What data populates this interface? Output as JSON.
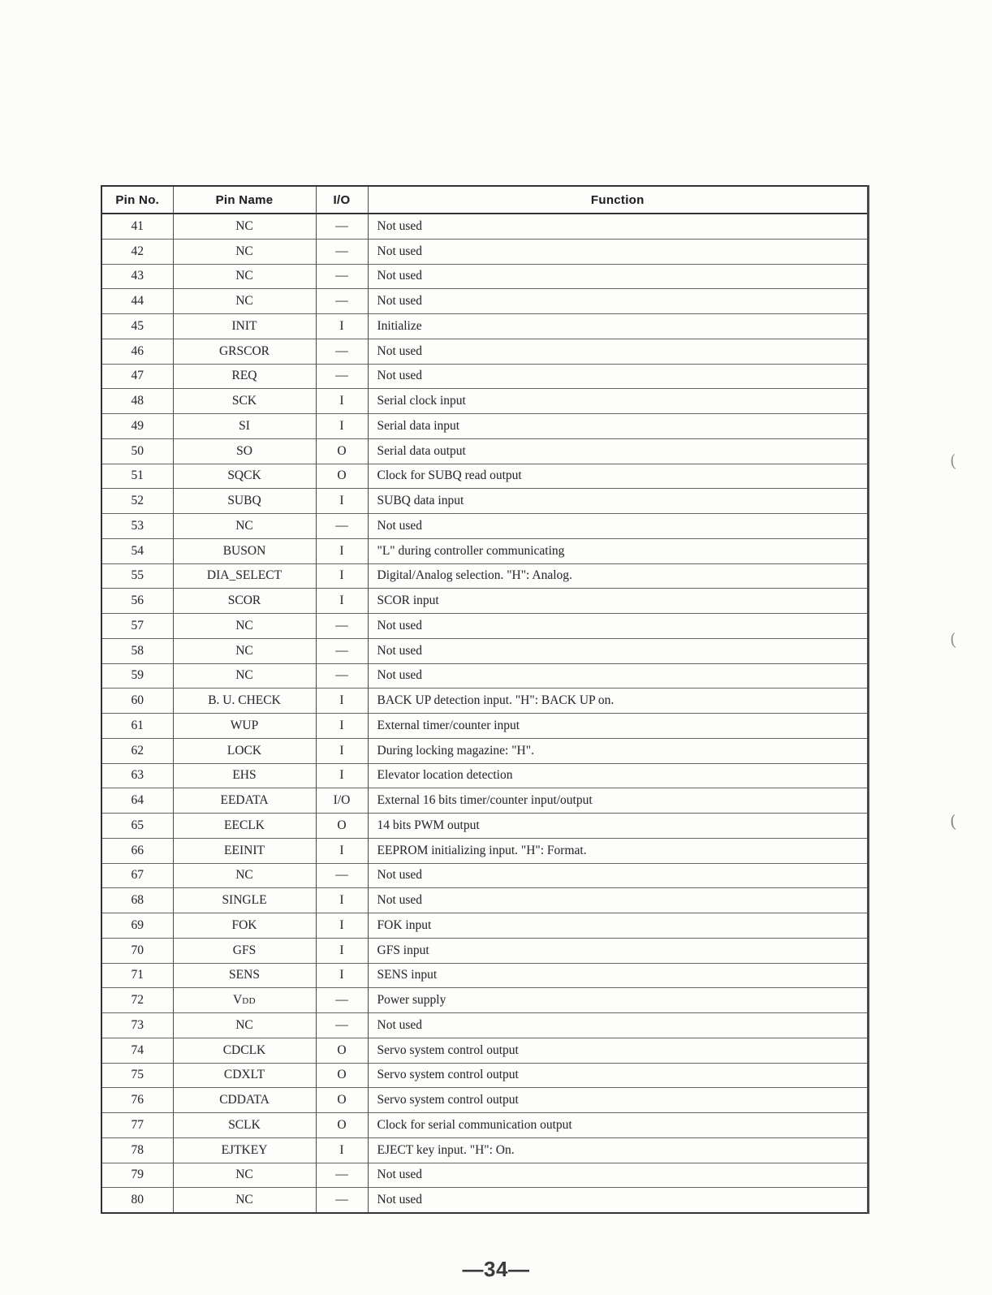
{
  "table": {
    "headers": [
      "Pin No.",
      "Pin Name",
      "I/O",
      "Function"
    ],
    "rows": [
      {
        "pin": "41",
        "name": "NC",
        "io": "—",
        "function": "Not used"
      },
      {
        "pin": "42",
        "name": "NC",
        "io": "—",
        "function": "Not used"
      },
      {
        "pin": "43",
        "name": "NC",
        "io": "—",
        "function": "Not used"
      },
      {
        "pin": "44",
        "name": "NC",
        "io": "—",
        "function": "Not used"
      },
      {
        "pin": "45",
        "name": "INIT",
        "io": "I",
        "function": "Initialize"
      },
      {
        "pin": "46",
        "name": "GRSCOR",
        "io": "—",
        "function": "Not used"
      },
      {
        "pin": "47",
        "name": "REQ",
        "io": "—",
        "function": "Not used"
      },
      {
        "pin": "48",
        "name": "SCK",
        "io": "I",
        "function": "Serial clock input"
      },
      {
        "pin": "49",
        "name": "SI",
        "io": "I",
        "function": "Serial data input"
      },
      {
        "pin": "50",
        "name": "SO",
        "io": "O",
        "function": "Serial data output"
      },
      {
        "pin": "51",
        "name": "SQCK",
        "io": "O",
        "function": "Clock for SUBQ read output"
      },
      {
        "pin": "52",
        "name": "SUBQ",
        "io": "I",
        "function": "SUBQ data input"
      },
      {
        "pin": "53",
        "name": "NC",
        "io": "—",
        "function": "Not used"
      },
      {
        "pin": "54",
        "name": "BUSON",
        "io": "I",
        "function": "\"L\" during controller communicating"
      },
      {
        "pin": "55",
        "name": "DIA_SELECT",
        "io": "I",
        "function": "Digital/Analog selection. \"H\": Analog."
      },
      {
        "pin": "56",
        "name": "SCOR",
        "io": "I",
        "function": "SCOR input"
      },
      {
        "pin": "57",
        "name": "NC",
        "io": "—",
        "function": "Not used"
      },
      {
        "pin": "58",
        "name": "NC",
        "io": "—",
        "function": "Not used"
      },
      {
        "pin": "59",
        "name": "NC",
        "io": "—",
        "function": "Not used"
      },
      {
        "pin": "60",
        "name": "B. U. CHECK",
        "io": "I",
        "function": "BACK UP detection input. \"H\": BACK UP on."
      },
      {
        "pin": "61",
        "name": "WUP",
        "io": "I",
        "function": "External timer/counter input"
      },
      {
        "pin": "62",
        "name": "LOCK",
        "io": "I",
        "function": "During locking magazine: \"H\"."
      },
      {
        "pin": "63",
        "name": "EHS",
        "io": "I",
        "function": "Elevator location detection"
      },
      {
        "pin": "64",
        "name": "EEDATA",
        "io": "I/O",
        "function": "External 16 bits timer/counter input/output"
      },
      {
        "pin": "65",
        "name": "EECLK",
        "io": "O",
        "function": "14 bits PWM output"
      },
      {
        "pin": "66",
        "name": "EEINIT",
        "io": "I",
        "function": "EEPROM initializing input. \"H\": Format."
      },
      {
        "pin": "67",
        "name": "NC",
        "io": "—",
        "function": "Not used"
      },
      {
        "pin": "68",
        "name": "SINGLE",
        "io": "I",
        "function": "Not used"
      },
      {
        "pin": "69",
        "name": "FOK",
        "io": "I",
        "function": "FOK input"
      },
      {
        "pin": "70",
        "name": "GFS",
        "io": "I",
        "function": "GFS input"
      },
      {
        "pin": "71",
        "name": "SENS",
        "io": "I",
        "function": "SENS input"
      },
      {
        "pin": "72",
        "name": "VDD",
        "name_sub": true,
        "io": "—",
        "function": "Power supply"
      },
      {
        "pin": "73",
        "name": "NC",
        "io": "—",
        "function": "Not used"
      },
      {
        "pin": "74",
        "name": "CDCLK",
        "io": "O",
        "function": "Servo system control output"
      },
      {
        "pin": "75",
        "name": "CDXLT",
        "io": "O",
        "function": "Servo system control output"
      },
      {
        "pin": "76",
        "name": "CDDATA",
        "io": "O",
        "function": "Servo system control output"
      },
      {
        "pin": "77",
        "name": "SCLK",
        "io": "O",
        "function": "Clock for serial communication output"
      },
      {
        "pin": "78",
        "name": "EJTKEY",
        "io": "I",
        "function": "EJECT key input. \"H\": On."
      },
      {
        "pin": "79",
        "name": "NC",
        "io": "—",
        "function": "Not used"
      },
      {
        "pin": "80",
        "name": "NC",
        "io": "—",
        "function": "Not used"
      }
    ]
  },
  "margin_marks": {
    "mark1": "(",
    "mark2": "(",
    "mark3": "("
  },
  "footer": {
    "page_number": "—34—"
  }
}
